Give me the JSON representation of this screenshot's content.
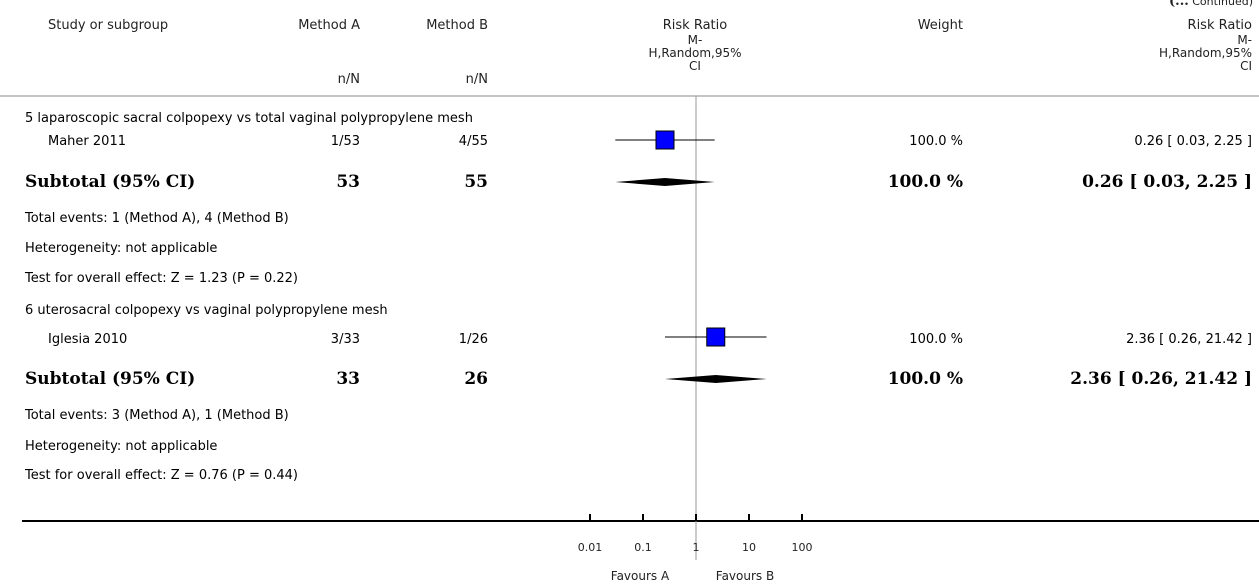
{
  "continued": {
    "prefix": "(...",
    "label": "Continued)"
  },
  "header": {
    "study": "Study or subgroup",
    "method_a": "Method A",
    "method_b": "Method B",
    "nN_a": "n/N",
    "nN_b": "n/N",
    "rr_title": "Risk Ratio",
    "rr_line1": "M-",
    "rr_line2": "H,Random,95%",
    "rr_line3": "CI",
    "weight": "Weight",
    "rr2_title": "Risk Ratio",
    "rr2_line1": "M-",
    "rr2_line2": "H,Random,95%",
    "rr2_line3": "CI"
  },
  "groups": [
    {
      "title": "5 laparoscopic sacral colpopexy vs total vaginal polypropylene mesh",
      "study": {
        "name": "Maher 2011",
        "a": "1/53",
        "b": "4/55",
        "weight": "100.0 %",
        "ci": "0.26 [ 0.03, 2.25 ]"
      },
      "subtotal": {
        "label": "Subtotal (95% CI)",
        "a": "53",
        "b": "55",
        "weight": "100.0 %",
        "ci": "0.26 [ 0.03, 2.25 ]"
      },
      "notes": [
        "Total events: 1 (Method A), 4 (Method B)",
        "Heterogeneity: not applicable",
        "Test for overall effect: Z = 1.23 (P = 0.22)"
      ]
    },
    {
      "title": "6 uterosacral colpopexy vs vaginal polypropylene mesh",
      "study": {
        "name": "Iglesia 2010",
        "a": "3/33",
        "b": "1/26",
        "weight": "100.0 %",
        "ci": "2.36 [ 0.26, 21.42 ]"
      },
      "subtotal": {
        "label": "Subtotal (95% CI)",
        "a": "33",
        "b": "26",
        "weight": "100.0 %",
        "ci": "2.36 [ 0.26, 21.42 ]"
      },
      "notes": [
        "Total events: 3 (Method A), 1 (Method B)",
        "Heterogeneity: not applicable",
        "Test for overall effect: Z = 0.76 (P = 0.44)"
      ]
    }
  ],
  "footer": {
    "favours_a": "Favours A",
    "favours_b": "Favours B"
  },
  "chart_data": {
    "type": "forest",
    "scale": "log",
    "xlim": [
      0.01,
      100
    ],
    "ticks": [
      "0.01",
      "0.1",
      "1",
      "10",
      "100"
    ],
    "tick_values": [
      0.01,
      0.1,
      1,
      10,
      100
    ],
    "reference_line": 1,
    "studies": [
      {
        "name": "Maher 2011",
        "est": 0.26,
        "lo": 0.03,
        "hi": 2.25
      },
      {
        "name": "Iglesia 2010",
        "est": 2.36,
        "lo": 0.26,
        "hi": 21.42
      }
    ],
    "subtotals": [
      {
        "group": "5 laparoscopic sacral colpopexy vs total vaginal polypropylene mesh",
        "est": 0.26,
        "lo": 0.03,
        "hi": 2.25
      },
      {
        "group": "6 uterosacral colpopexy vs vaginal polypropylene mesh",
        "est": 2.36,
        "lo": 0.26,
        "hi": 21.42
      }
    ],
    "marker_color": "#0000ff"
  }
}
